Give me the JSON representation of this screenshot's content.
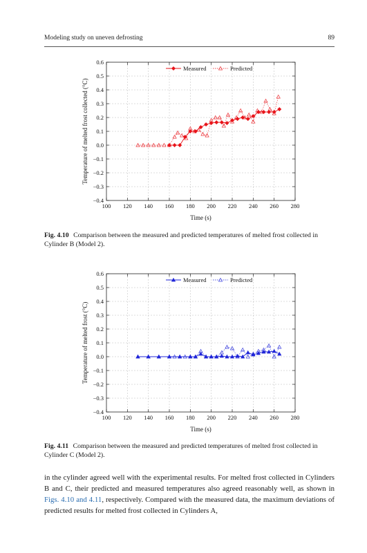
{
  "header": {
    "title": "Modeling study on uneven defrosting",
    "page_number": "89"
  },
  "figures": [
    {
      "label": "Fig. 4.10",
      "caption": "Comparison between the measured and predicted temperatures of melted frost collected in Cylinder B (Model 2).",
      "color": "#e8141a",
      "chart_data": {
        "type": "line",
        "xlabel": "Time (s)",
        "ylabel": "Temperature of melted frost collected (°C)",
        "xlim": [
          100,
          280
        ],
        "ylim": [
          -0.4,
          0.6
        ],
        "xticks": [
          100,
          120,
          140,
          160,
          180,
          200,
          220,
          240,
          260,
          280
        ],
        "yticks": [
          -0.4,
          -0.3,
          -0.2,
          -0.1,
          0.0,
          0.1,
          0.2,
          0.3,
          0.4,
          0.5,
          0.6
        ],
        "ytick_labels": [
          "−0.4",
          "−0.3",
          "−0.2",
          "−0.1",
          "0.0",
          "0.1",
          "0.2",
          "0.3",
          "0.4",
          "0.5",
          "0.6"
        ],
        "grid": true,
        "legend": "top-center",
        "series": [
          {
            "name": "Measured",
            "style": "solid",
            "marker": "filled-diamond",
            "x": [
              160,
              165,
              170,
              175,
              180,
              185,
              190,
              195,
              200,
              205,
              210,
              215,
              220,
              225,
              230,
              235,
              240,
              245,
              250,
              255,
              260,
              265
            ],
            "y": [
              0.0,
              0.0,
              0.0,
              0.06,
              0.1,
              0.1,
              0.13,
              0.15,
              0.16,
              0.165,
              0.165,
              0.16,
              0.18,
              0.19,
              0.2,
              0.19,
              0.21,
              0.24,
              0.24,
              0.24,
              0.24,
              0.26
            ]
          },
          {
            "name": "Predicted",
            "style": "dotted",
            "marker": "open-triangle",
            "x": [
              130,
              135,
              140,
              145,
              150,
              155,
              160,
              165,
              168,
              172,
              176,
              180,
              184,
              188,
              192,
              196,
              200,
              204,
              208,
              212,
              216,
              220,
              224,
              228,
              232,
              236,
              240,
              244,
              248,
              252,
              256,
              260,
              264
            ],
            "y": [
              0.0,
              0.0,
              0.0,
              0.0,
              0.0,
              0.0,
              0.0,
              0.06,
              0.09,
              0.07,
              0.05,
              0.12,
              0.1,
              0.11,
              0.08,
              0.07,
              0.18,
              0.2,
              0.2,
              0.14,
              0.22,
              0.17,
              0.2,
              0.25,
              0.2,
              0.22,
              0.17,
              0.25,
              0.24,
              0.32,
              0.26,
              0.23,
              0.35
            ]
          }
        ]
      }
    },
    {
      "label": "Fig. 4.11",
      "caption": "Comparison between the measured and predicted temperatures of melted frost collected in Cylinder C (Model 2).",
      "color": "#1f25d8",
      "chart_data": {
        "type": "line",
        "xlabel": "Time (s)",
        "ylabel": "Temperature of melted frost (°C)",
        "xlim": [
          100,
          280
        ],
        "ylim": [
          -0.4,
          0.6
        ],
        "xticks": [
          100,
          120,
          140,
          160,
          180,
          200,
          220,
          240,
          260,
          280
        ],
        "yticks": [
          -0.4,
          -0.3,
          -0.2,
          -0.1,
          0.0,
          0.1,
          0.2,
          0.3,
          0.4,
          0.5,
          0.6
        ],
        "ytick_labels": [
          "−0.4",
          "−0.3",
          "−0.2",
          "−0.1",
          "0.0",
          "0.1",
          "0.2",
          "0.3",
          "0.4",
          "0.5",
          "0.6"
        ],
        "grid": true,
        "legend": "top-center",
        "series": [
          {
            "name": "Measured",
            "style": "solid",
            "marker": "filled-triangle",
            "x": [
              130,
              140,
              150,
              160,
              170,
              180,
              185,
              190,
              195,
              200,
              205,
              210,
              215,
              220,
              225,
              230,
              235,
              240,
              245,
              250,
              255,
              260,
              265
            ],
            "y": [
              0.0,
              0.0,
              0.0,
              0.0,
              0.0,
              0.0,
              0.0,
              0.02,
              0.0,
              0.0,
              0.0,
              0.005,
              0.0,
              0.0,
              0.005,
              0.0,
              0.03,
              0.015,
              0.025,
              0.035,
              0.035,
              0.04,
              0.02
            ]
          },
          {
            "name": "Predicted",
            "style": "dotted",
            "marker": "open-triangle",
            "x": [
              130,
              140,
              150,
              160,
              165,
              170,
              175,
              180,
              185,
              190,
              195,
              200,
              205,
              210,
              215,
              220,
              225,
              230,
              235,
              240,
              245,
              250,
              255,
              260,
              265
            ],
            "y": [
              0.0,
              0.0,
              0.0,
              0.0,
              0.0,
              0.0,
              0.0,
              0.0,
              0.0,
              0.04,
              0.0,
              0.0,
              0.0,
              0.03,
              0.07,
              0.06,
              0.0,
              0.05,
              0.0,
              0.02,
              0.04,
              0.05,
              0.08,
              0.0,
              0.07
            ]
          }
        ]
      }
    }
  ],
  "body": {
    "text_before": "in the cylinder agreed well with the experimental results. For melted frost collected in Cylinders B and C, their predicted and measured temperatures also agreed reasonably well, as shown in ",
    "fig_ref": "Figs. 4.10 and 4.11",
    "text_after": ", respectively. Compared with the measured data, the maximum deviations of predicted results for melted frost collected in Cylinders A,"
  }
}
